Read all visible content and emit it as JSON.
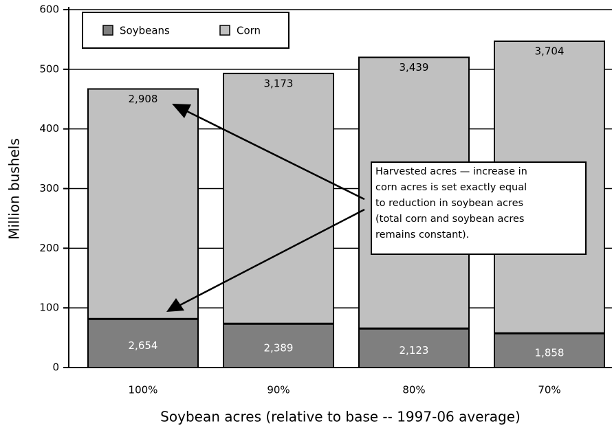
{
  "chart_data": {
    "type": "stacked-bar",
    "categories": [
      "100%",
      "90%",
      "80%",
      "70%"
    ],
    "series": [
      {
        "name": "Soybeans",
        "color": "#7f7f7f",
        "values": [
          82,
          74,
          66,
          58
        ],
        "segment_labels": [
          "2,654",
          "2,389",
          "2,123",
          "1,858"
        ]
      },
      {
        "name": "Corn",
        "color": "#c0c0c0",
        "values": [
          385,
          419,
          454,
          489
        ],
        "segment_labels": [
          "2,908",
          "3,173",
          "3,439",
          "3,704"
        ]
      }
    ],
    "ylim": [
      0,
      600
    ],
    "yticks": [
      0,
      100,
      200,
      300,
      400,
      500,
      600
    ],
    "ylabel": "Million bushels",
    "xlabel": "Soybean acres (relative to base -- 1997-06 average)",
    "grid": true,
    "annotation": [
      "Harvested acres — increase in",
      "corn acres is set exactly equal",
      "to reduction in soybean acres",
      "(total corn and soybean acres",
      "remains constant)."
    ]
  }
}
